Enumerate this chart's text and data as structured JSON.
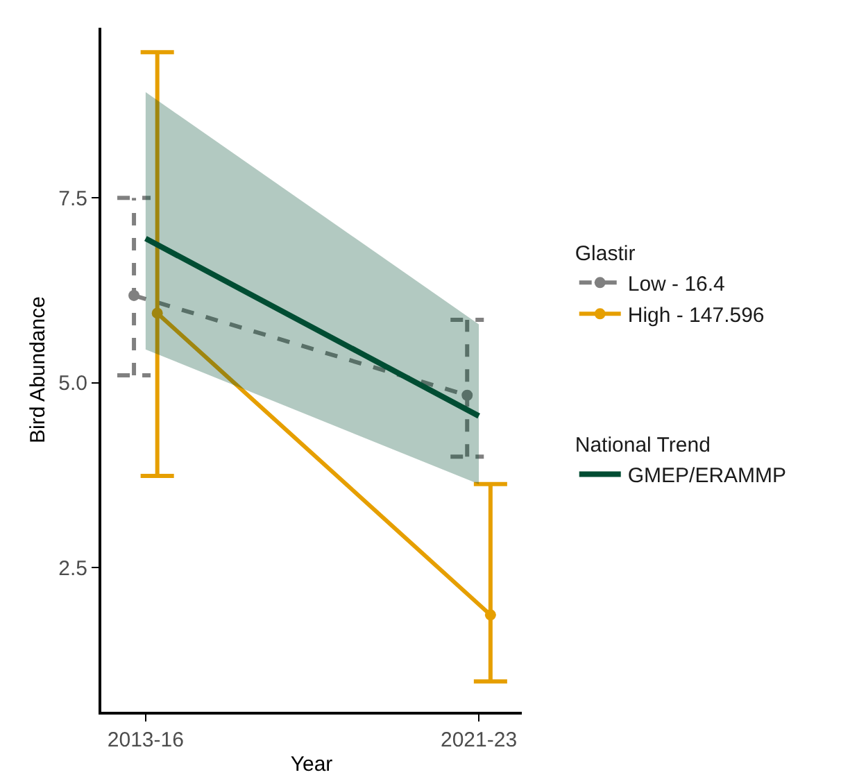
{
  "chart_data": {
    "type": "line",
    "xlabel": "Year",
    "ylabel": "Bird Abundance",
    "legend_title": [
      "Glastir",
      "National Trend"
    ],
    "categories": [
      "2013-16",
      "2021-23"
    ],
    "series": [
      {
        "name": "Low - 16.4",
        "color": "#808080",
        "values": [
          6.18,
          4.83
        ],
        "errors": [
          [
            5.1,
            7.5
          ],
          [
            4.0,
            5.85
          ]
        ],
        "line_style": "dashed",
        "marker": "circle"
      },
      {
        "name": "High - 147.596",
        "color": "#e69f00",
        "values": [
          5.94,
          1.86
        ],
        "errors": [
          [
            3.74,
            9.47
          ],
          [
            0.96,
            3.63
          ]
        ],
        "line_style": "solid",
        "marker": "circle"
      },
      {
        "name": "GMEP/ERAMMP",
        "color": "#004d33",
        "values": [
          6.95,
          4.55
        ],
        "lower": [
          5.45,
          3.63
        ],
        "upper": [
          8.93,
          5.79
        ],
        "line_style": "solid",
        "marker": "none"
      }
    ],
    "ylim": [
      0.55,
      9.8
    ],
    "yticks": [
      2.5,
      {
        "value": 5,
        "label": "5.0"
      },
      {
        "value": 7.5,
        "label": "7.5"
      }
    ],
    "grid": false,
    "legend": "right"
  }
}
